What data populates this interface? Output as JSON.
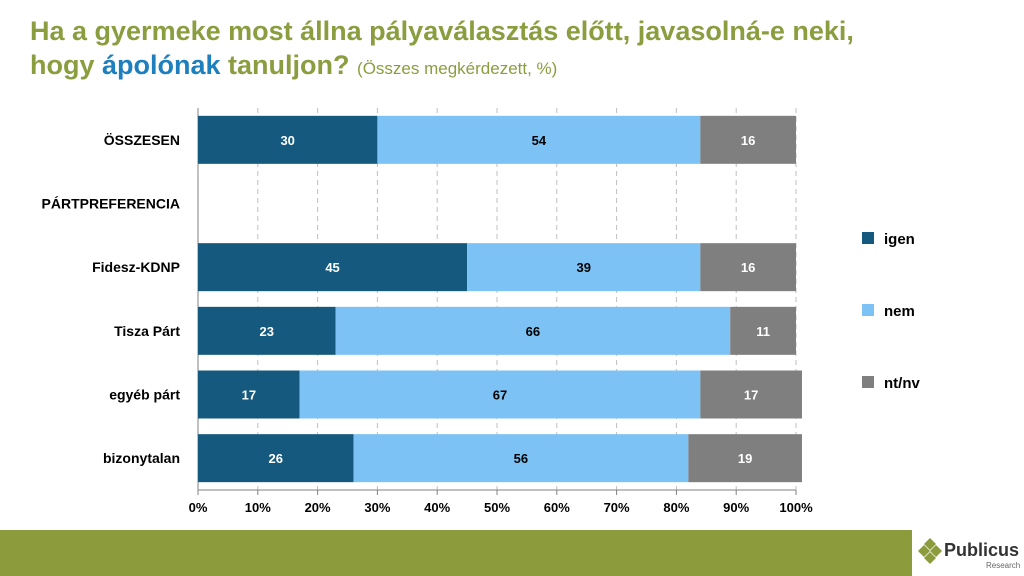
{
  "title": {
    "line1": "Ha a gyermeke most állna pályaválasztás előtt, javasolná-e neki,",
    "line2_pre": "hogy ",
    "line2_highlight": "ápolónak",
    "line2_post": " tanuljon?",
    "subtitle": "(Összes megkérdezett, %)"
  },
  "colors": {
    "title": "#8a9d3f",
    "highlight": "#1e7fbf",
    "igen": "#155a7e",
    "nem": "#7cc2f5",
    "ntnv": "#7f7f7f",
    "footer": "#8c9c3c"
  },
  "chart_data": {
    "type": "bar",
    "orientation": "horizontal",
    "stacked": true,
    "categories": [
      "ÖSSZESEN",
      "PÁRTPREFERENCIA",
      "Fidesz-KDNP",
      "Tisza Párt",
      "egyéb párt",
      "bizonytalan"
    ],
    "series": [
      {
        "name": "igen",
        "values": [
          30,
          null,
          45,
          23,
          17,
          26
        ]
      },
      {
        "name": "nem",
        "values": [
          54,
          null,
          39,
          66,
          67,
          56
        ]
      },
      {
        "name": "nt/nv",
        "values": [
          16,
          null,
          16,
          11,
          17,
          19
        ]
      }
    ],
    "xlim": [
      0,
      100
    ],
    "xticks": [
      "0%",
      "10%",
      "20%",
      "30%",
      "40%",
      "50%",
      "60%",
      "70%",
      "80%",
      "90%",
      "100%"
    ],
    "grid": true,
    "legend_position": "right"
  },
  "logo": {
    "name": "Publicus",
    "sub": "Research"
  }
}
